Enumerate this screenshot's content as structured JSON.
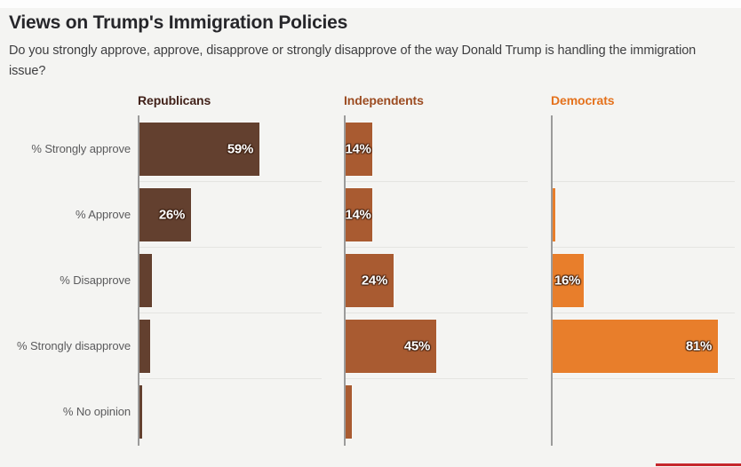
{
  "header": {
    "title": "Views on Trump's Immigration Policies",
    "subtitle": "Do you strongly approve, approve, disapprove or strongly disapprove of the way Donald Trump is handling the immigration issue?"
  },
  "chart_data": {
    "type": "bar",
    "orientation": "horizontal",
    "title": "Views on Trump's Immigration Policies",
    "subtitle": "Do you strongly approve, approve, disapprove or strongly disapprove of the way Donald Trump is handling the immigration issue?",
    "categories": [
      "% Strongly approve",
      "% Approve",
      "% Disapprove",
      "% Strongly disapprove",
      "% No opinion"
    ],
    "series": [
      {
        "name": "Republicans",
        "color": "#63402f",
        "header_color": "#42221a",
        "values": [
          59,
          26,
          7,
          6,
          2
        ],
        "value_labels": [
          "59%",
          "26%",
          null,
          null,
          null
        ]
      },
      {
        "name": "Independents",
        "color": "#a95b31",
        "header_color": "#9c4c22",
        "values": [
          14,
          14,
          24,
          45,
          4
        ],
        "value_labels": [
          "14%",
          "14%",
          "24%",
          "45%",
          null
        ]
      },
      {
        "name": "Democrats",
        "color": "#e87e2b",
        "header_color": "#e4711c",
        "values": [
          0,
          2,
          16,
          81,
          0
        ],
        "value_labels": [
          null,
          null,
          "16%",
          "81%",
          null
        ]
      }
    ],
    "value_unit": "%",
    "xlim": [
      0,
      100
    ],
    "grid": "row-separators-only",
    "legend_position": "column-headers-above-panels"
  },
  "style": {
    "background": "#f4f4f2",
    "top_strip": "#fdfdfd",
    "axis_color": "#9b9b9b",
    "gridline_color": "#e4e4e1",
    "category_label_color": "#5b5b5d",
    "title_color": "#26262a",
    "subtitle_color": "#3e3e40",
    "bar_value_text_color": "#ffffff",
    "brand_line_color": "#c5272c"
  }
}
